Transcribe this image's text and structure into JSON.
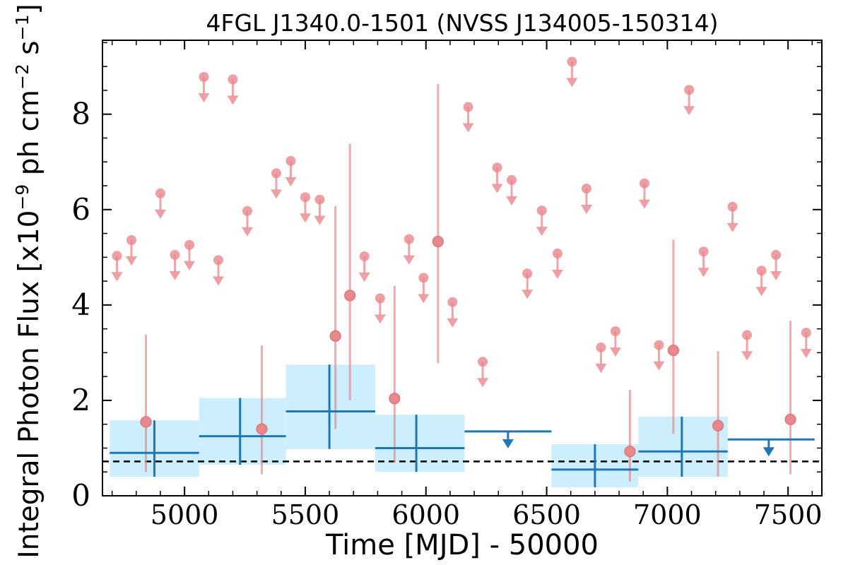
{
  "chart_data": {
    "type": "scatter",
    "title": "4FGL J1340.0-1501 (NVSS J134005-150314)",
    "xlabel": "Time [MJD] - 50000",
    "ylabel": "Integral Photon Flux [x10",
    "ylabel_exp1": "−9",
    "ylabel_mid": " ph cm",
    "ylabel_exp2": "−2",
    "ylabel_mid2": " s",
    "ylabel_exp3": "−1",
    "ylabel_end": "]",
    "xlim": [
      4660,
      7640
    ],
    "ylim": [
      0,
      9.55
    ],
    "x_ticks": [
      5000,
      5500,
      6000,
      6500,
      7000,
      7500
    ],
    "x_tick_labels": [
      "5000",
      "5500",
      "6000",
      "6500",
      "7000",
      "7500"
    ],
    "y_ticks": [
      0,
      2,
      4,
      6,
      8
    ],
    "y_tick_labels": [
      "0",
      "2",
      "4",
      "6",
      "8"
    ],
    "grid": false,
    "colors": {
      "short_bins": "#e8878c",
      "long_bins": "#1f77b4",
      "long_bins_band": "#cdeefc",
      "baseline": "#000000"
    },
    "baseline": 0.72,
    "short_bin_detections": [
      {
        "x": 4840,
        "y": 1.55,
        "ylo": 0.5,
        "yhi": 3.38
      },
      {
        "x": 5320,
        "y": 1.4,
        "ylo": 0.45,
        "yhi": 3.15
      },
      {
        "x": 5625,
        "y": 3.35,
        "ylo": 1.4,
        "yhi": 6.07
      },
      {
        "x": 5685,
        "y": 4.2,
        "ylo": 2.0,
        "yhi": 7.38
      },
      {
        "x": 5870,
        "y": 2.04,
        "ylo": 0.7,
        "yhi": 4.4
      },
      {
        "x": 6050,
        "y": 5.33,
        "ylo": 2.78,
        "yhi": 8.63
      },
      {
        "x": 6845,
        "y": 0.93,
        "ylo": 0.3,
        "yhi": 2.22
      },
      {
        "x": 7025,
        "y": 3.05,
        "ylo": 1.3,
        "yhi": 5.37
      },
      {
        "x": 7210,
        "y": 1.47,
        "ylo": 0.4,
        "yhi": 3.03
      },
      {
        "x": 7510,
        "y": 1.6,
        "ylo": 0.45,
        "yhi": 3.67
      }
    ],
    "short_bin_upper_limits": [
      {
        "x": 4720,
        "y": 5.03
      },
      {
        "x": 4780,
        "y": 5.36
      },
      {
        "x": 4900,
        "y": 6.34
      },
      {
        "x": 4960,
        "y": 5.05
      },
      {
        "x": 5020,
        "y": 5.26
      },
      {
        "x": 5080,
        "y": 8.78
      },
      {
        "x": 5140,
        "y": 4.94
      },
      {
        "x": 5200,
        "y": 8.73
      },
      {
        "x": 5260,
        "y": 5.97
      },
      {
        "x": 5380,
        "y": 6.76
      },
      {
        "x": 5440,
        "y": 7.02
      },
      {
        "x": 5500,
        "y": 6.26
      },
      {
        "x": 5560,
        "y": 6.21
      },
      {
        "x": 5745,
        "y": 5.02
      },
      {
        "x": 5810,
        "y": 4.14
      },
      {
        "x": 5930,
        "y": 5.38
      },
      {
        "x": 5990,
        "y": 4.57
      },
      {
        "x": 6110,
        "y": 4.06
      },
      {
        "x": 6175,
        "y": 8.15
      },
      {
        "x": 6235,
        "y": 2.81
      },
      {
        "x": 6295,
        "y": 6.88
      },
      {
        "x": 6355,
        "y": 6.62
      },
      {
        "x": 6420,
        "y": 4.66
      },
      {
        "x": 6480,
        "y": 5.98
      },
      {
        "x": 6545,
        "y": 5.08
      },
      {
        "x": 6605,
        "y": 9.1
      },
      {
        "x": 6665,
        "y": 6.44
      },
      {
        "x": 6725,
        "y": 3.11
      },
      {
        "x": 6785,
        "y": 3.45
      },
      {
        "x": 6905,
        "y": 6.55
      },
      {
        "x": 6965,
        "y": 3.16
      },
      {
        "x": 7090,
        "y": 8.51
      },
      {
        "x": 7150,
        "y": 5.12
      },
      {
        "x": 7270,
        "y": 6.06
      },
      {
        "x": 7330,
        "y": 3.37
      },
      {
        "x": 7390,
        "y": 4.72
      },
      {
        "x": 7450,
        "y": 5.05
      },
      {
        "x": 7575,
        "y": 3.42
      }
    ],
    "long_bin_detections": [
      {
        "x": 4875,
        "xlo": 4690,
        "xhi": 5060,
        "y": 0.9,
        "ylo": 0.4,
        "yhi": 1.58
      },
      {
        "x": 5230,
        "xlo": 5060,
        "xhi": 5420,
        "y": 1.25,
        "ylo": 0.65,
        "yhi": 2.05
      },
      {
        "x": 5600,
        "xlo": 5420,
        "xhi": 5790,
        "y": 1.77,
        "ylo": 0.98,
        "yhi": 2.75
      },
      {
        "x": 5960,
        "xlo": 5790,
        "xhi": 6160,
        "y": 1.0,
        "ylo": 0.5,
        "yhi": 1.7
      },
      {
        "x": 6700,
        "xlo": 6520,
        "xhi": 6880,
        "y": 0.55,
        "ylo": 0.18,
        "yhi": 1.08
      },
      {
        "x": 7060,
        "xlo": 6880,
        "xhi": 7250,
        "y": 0.93,
        "ylo": 0.4,
        "yhi": 1.66
      }
    ],
    "long_bin_upper_limits": [
      {
        "x": 6340,
        "xlo": 6160,
        "xhi": 6520,
        "y": 1.35
      },
      {
        "x": 7420,
        "xlo": 7250,
        "xhi": 7610,
        "y": 1.18
      }
    ]
  }
}
